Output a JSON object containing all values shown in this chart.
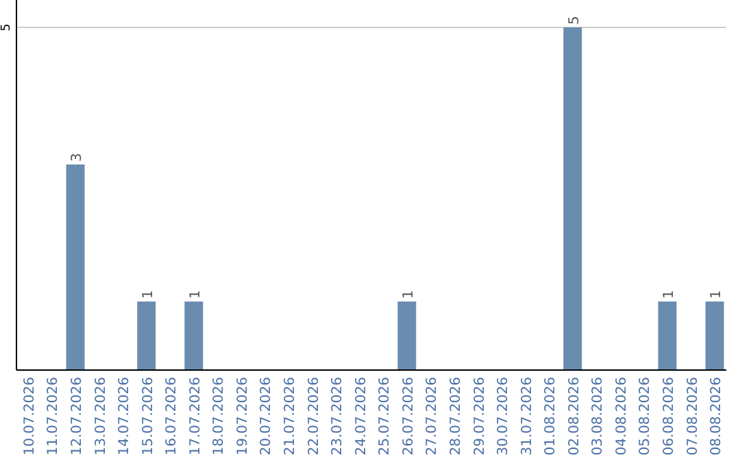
{
  "chart_data": {
    "type": "bar",
    "categories": [
      "10.07.2026",
      "11.07.2026",
      "12.07.2026",
      "13.07.2026",
      "14.07.2026",
      "15.07.2026",
      "16.07.2026",
      "17.07.2026",
      "18.07.2026",
      "19.07.2026",
      "20.07.2026",
      "21.07.2026",
      "22.07.2026",
      "23.07.2026",
      "24.07.2026",
      "25.07.2026",
      "26.07.2026",
      "27.07.2026",
      "28.07.2026",
      "29.07.2026",
      "30.07.2026",
      "31.07.2026",
      "01.08.2026",
      "02.08.2026",
      "03.08.2026",
      "04.08.2026",
      "05.08.2026",
      "06.08.2026",
      "07.08.2026",
      "08.08.2026"
    ],
    "values": [
      null,
      null,
      3,
      null,
      null,
      1,
      null,
      1,
      null,
      null,
      null,
      null,
      null,
      null,
      null,
      null,
      1,
      null,
      null,
      null,
      null,
      null,
      null,
      5,
      null,
      null,
      null,
      1,
      null,
      1
    ],
    "color": "#6a8caf",
    "ylim": [
      0,
      5
    ],
    "yticks": [
      5
    ],
    "ref_lines": [
      {
        "axis": "y",
        "value": 5,
        "color": "#cccccc"
      }
    ],
    "data_labels": true
  }
}
